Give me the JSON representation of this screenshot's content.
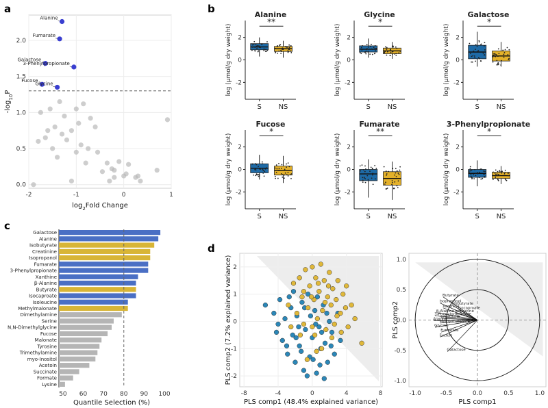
{
  "panels": {
    "a": {
      "label": "a"
    },
    "b": {
      "label": "b"
    },
    "c": {
      "label": "c"
    },
    "d": {
      "label": "d"
    }
  },
  "chart_data": [
    {
      "id": "volcano",
      "type": "scatter",
      "title": "",
      "xlabel_main": "log",
      "xlabel_sub": "2",
      "xlabel_tail": "Fold Change",
      "ylabel_main": "-log",
      "ylabel_sub": "10",
      "ylabel_tail": "P",
      "xlim": [
        -2,
        1
      ],
      "ylim": [
        -0.05,
        2.35
      ],
      "xticks": [
        "-2",
        "-1",
        "0",
        "1"
      ],
      "yticks": [
        "0.0",
        "0.5",
        "1.0",
        "1.5",
        "2.0"
      ],
      "threshold": 1.3,
      "significant": [
        {
          "name": "Alanine",
          "x": -1.3,
          "y": 2.26
        },
        {
          "name": "Fumarate",
          "x": -1.35,
          "y": 2.02
        },
        {
          "name": "Galactose",
          "x": -1.65,
          "y": 1.68
        },
        {
          "name": "3-Phenylpropionate",
          "x": -1.05,
          "y": 1.63
        },
        {
          "name": "Fucose",
          "x": -1.72,
          "y": 1.39
        },
        {
          "name": "Glycine",
          "x": -1.4,
          "y": 1.35
        }
      ],
      "nonsignificant": [
        [
          -1.75,
          1.0
        ],
        [
          -1.55,
          1.05
        ],
        [
          -1.35,
          1.15
        ],
        [
          -1.0,
          1.05
        ],
        [
          -0.85,
          1.12
        ],
        [
          -1.25,
          0.95
        ],
        [
          -1.45,
          0.8
        ],
        [
          -0.95,
          0.85
        ],
        [
          -0.7,
          0.92
        ],
        [
          -1.1,
          0.75
        ],
        [
          -1.3,
          0.7
        ],
        [
          -0.6,
          0.8
        ],
        [
          -1.6,
          0.75
        ],
        [
          -1.2,
          0.62
        ],
        [
          -0.9,
          0.55
        ],
        [
          -1.5,
          0.5
        ],
        [
          -1.0,
          0.45
        ],
        [
          -1.4,
          0.38
        ],
        [
          -0.8,
          0.3
        ],
        [
          -0.35,
          0.3
        ],
        [
          -0.1,
          0.32
        ],
        [
          0.1,
          0.28
        ],
        [
          -0.25,
          0.22
        ],
        [
          0.05,
          0.15
        ],
        [
          -0.2,
          0.1
        ],
        [
          -0.45,
          0.18
        ],
        [
          -0.3,
          0.05
        ],
        [
          0.0,
          0.12
        ],
        [
          0.3,
          0.12
        ],
        [
          0.35,
          0.05
        ],
        [
          0.7,
          0.2
        ],
        [
          0.92,
          0.9
        ],
        [
          -1.8,
          0.6
        ],
        [
          -1.65,
          0.65
        ],
        [
          -1.9,
          0.0
        ],
        [
          -1.1,
          0.05
        ],
        [
          -0.75,
          0.5
        ],
        [
          -0.55,
          0.45
        ],
        [
          -0.2,
          0.2
        ],
        [
          0.25,
          0.1
        ]
      ]
    },
    {
      "id": "boxplots",
      "type": "box",
      "ylabel": "log (μmol/g dry weight)",
      "yticks": [
        "-2",
        "0",
        "2"
      ],
      "categories": [
        "S",
        "NS"
      ],
      "panels": [
        {
          "title": "Alanine",
          "sig": "**",
          "S": {
            "q1": 0.9,
            "med": 1.15,
            "q3": 1.45,
            "min": 0.3,
            "max": 2.0
          },
          "NS": {
            "q1": 0.75,
            "med": 1.0,
            "q3": 1.2,
            "min": 0.2,
            "max": 1.7
          }
        },
        {
          "title": "Glycine",
          "sig": "*",
          "S": {
            "q1": 0.7,
            "med": 0.95,
            "q3": 1.25,
            "min": 0.2,
            "max": 1.9
          },
          "NS": {
            "q1": 0.55,
            "med": 0.8,
            "q3": 1.05,
            "min": 0.1,
            "max": 1.6
          }
        },
        {
          "title": "Galactose",
          "sig": "*",
          "S": {
            "q1": 0.1,
            "med": 0.7,
            "q3": 1.3,
            "min": -0.6,
            "max": 2.5
          },
          "NS": {
            "q1": -0.1,
            "med": 0.35,
            "q3": 0.8,
            "min": -0.6,
            "max": 1.6
          }
        },
        {
          "title": "Fucose",
          "sig": "*",
          "S": {
            "q1": -0.3,
            "med": 0.1,
            "q3": 0.5,
            "min": -0.9,
            "max": 1.3
          },
          "NS": {
            "q1": -0.5,
            "med": -0.1,
            "q3": 0.3,
            "min": -1.2,
            "max": 1.2
          }
        },
        {
          "title": "Fumarate",
          "sig": "**",
          "S": {
            "q1": -1.0,
            "med": -0.4,
            "q3": 0.0,
            "min": -2.5,
            "max": 0.9
          },
          "NS": {
            "q1": -1.4,
            "med": -0.8,
            "q3": -0.2,
            "min": -2.7,
            "max": 0.7
          }
        },
        {
          "title": "3-Phenylpropionate",
          "sig": "*",
          "S": {
            "q1": -0.7,
            "med": -0.35,
            "q3": 0.0,
            "min": -1.5,
            "max": 0.8
          },
          "NS": {
            "q1": -0.8,
            "med": -0.55,
            "q3": -0.25,
            "min": -1.3,
            "max": 0.3
          }
        }
      ]
    },
    {
      "id": "quantile",
      "type": "bar",
      "orientation": "horizontal",
      "xlabel": "Quantile Selection (%)",
      "xlim": [
        48,
        100
      ],
      "xticks": [
        "50",
        "60",
        "70",
        "80",
        "90",
        "100"
      ],
      "threshold": 80,
      "categories": [
        "Galactose",
        "Alanine",
        "Isobutyrate",
        "Creatinine",
        "Isopropanol",
        "Fumarate",
        "3-Phenylpropionate",
        "Xanthine",
        "β-Alanine",
        "Butyrate",
        "Isocaproate",
        "Isoleucine",
        "Methylmalonate",
        "Dimethylamine",
        "Serine",
        "N,N-Dimethylglycine",
        "Fucose",
        "Malonate",
        "Tyrosine",
        "Trimethylamine",
        "myo-Inositol",
        "Acetoin",
        "Succinate",
        "Formate",
        "Lysine"
      ],
      "values": [
        98,
        97,
        95,
        93,
        93,
        92,
        92,
        87,
        86,
        86,
        86,
        82,
        82,
        79,
        75,
        74,
        72,
        69,
        68,
        67,
        66,
        63,
        58,
        55,
        51
      ],
      "groups": [
        "blue",
        "blue",
        "gold",
        "gold",
        "gold",
        "blue",
        "blue",
        "blue",
        "blue",
        "gold",
        "blue",
        "blue",
        "gold",
        "gray",
        "gray",
        "gray",
        "gray",
        "gray",
        "gray",
        "gray",
        "gray",
        "gray",
        "gray",
        "gray",
        "gray"
      ],
      "colors": {
        "blue": "#4a6fc4",
        "gold": "#d8b536",
        "gray": "#b5b5b5"
      }
    },
    {
      "id": "pls_scores",
      "type": "scatter",
      "xlabel": "PLS comp1 (48.4% explained variance)",
      "ylabel": "PLS comp2 (7.2% explained variance)",
      "xlim": [
        -8.5,
        8.2
      ],
      "ylim": [
        -2.4,
        2.5
      ],
      "xticks": [
        "-8",
        "-4",
        "0",
        "4",
        "8"
      ],
      "yticks": [
        "-2",
        "-1",
        "0",
        "1",
        "2"
      ],
      "series": [
        {
          "name": "S",
          "color": "#2b87b8",
          "points": [
            [
              -5.5,
              0.6
            ],
            [
              -4.5,
              0.3
            ],
            [
              -4.2,
              -0.4
            ],
            [
              -3.8,
              0.8
            ],
            [
              -3.5,
              -0.7
            ],
            [
              -3.2,
              0.1
            ],
            [
              -2.9,
              -1.2
            ],
            [
              -2.5,
              0.5
            ],
            [
              -2.3,
              -0.5
            ],
            [
              -2.0,
              -1.5
            ],
            [
              -1.8,
              0.2
            ],
            [
              -1.5,
              -0.9
            ],
            [
              -1.2,
              0.7
            ],
            [
              -1.0,
              -1.8
            ],
            [
              -0.8,
              -0.3
            ],
            [
              -0.5,
              1.0
            ],
            [
              -0.3,
              -1.3
            ],
            [
              0.0,
              -0.6
            ],
            [
              0.3,
              0.4
            ],
            [
              0.5,
              -1.9
            ],
            [
              0.8,
              -0.2
            ],
            [
              1.0,
              -1.0
            ],
            [
              1.3,
              0.6
            ],
            [
              1.5,
              -0.8
            ],
            [
              1.8,
              -1.5
            ],
            [
              2.0,
              0.0
            ],
            [
              2.3,
              -0.4
            ],
            [
              2.6,
              -1.2
            ],
            [
              3.0,
              0.3
            ],
            [
              3.3,
              -0.7
            ],
            [
              -2.7,
              0.9
            ],
            [
              -1.6,
              -0.2
            ],
            [
              -0.6,
              -2.0
            ],
            [
              0.6,
              0.9
            ],
            [
              1.1,
              -0.4
            ],
            [
              -3.0,
              -0.9
            ],
            [
              -2.2,
              1.1
            ],
            [
              -0.2,
              0.2
            ],
            [
              0.9,
              -1.6
            ],
            [
              1.7,
              0.3
            ],
            [
              -1.3,
              -1.1
            ],
            [
              2.2,
              -0.9
            ],
            [
              0.1,
              -1.4
            ],
            [
              -4.0,
              -0.1
            ],
            [
              -0.9,
              0.5
            ],
            [
              1.4,
              -2.1
            ],
            [
              -1.9,
              -0.6
            ],
            [
              0.4,
              -0.1
            ]
          ]
        },
        {
          "name": "NS",
          "color": "#e0b83a",
          "points": [
            [
              -2.8,
              0.6
            ],
            [
              -2.2,
              1.4
            ],
            [
              -1.8,
              0.3
            ],
            [
              -1.5,
              1.6
            ],
            [
              -1.2,
              0.9
            ],
            [
              -1.0,
              -0.1
            ],
            [
              -0.8,
              1.9
            ],
            [
              -0.5,
              0.5
            ],
            [
              -0.3,
              1.3
            ],
            [
              0.0,
              2.0
            ],
            [
              0.2,
              0.8
            ],
            [
              0.4,
              1.6
            ],
            [
              0.6,
              0.1
            ],
            [
              0.8,
              1.1
            ],
            [
              1.0,
              2.1
            ],
            [
              1.2,
              0.4
            ],
            [
              1.4,
              1.5
            ],
            [
              1.6,
              -0.3
            ],
            [
              1.8,
              0.9
            ],
            [
              2.0,
              1.8
            ],
            [
              2.2,
              0.6
            ],
            [
              2.4,
              1.2
            ],
            [
              2.6,
              -0.1
            ],
            [
              2.8,
              0.8
            ],
            [
              3.0,
              1.5
            ],
            [
              3.3,
              0.3
            ],
            [
              3.6,
              1.0
            ],
            [
              3.9,
              0.5
            ],
            [
              4.2,
              -0.2
            ],
            [
              4.6,
              0.6
            ],
            [
              5.0,
              0.1
            ],
            [
              5.8,
              -0.8
            ],
            [
              -0.6,
              -1.4
            ],
            [
              0.3,
              -0.5
            ],
            [
              1.1,
              -1.0
            ],
            [
              -1.4,
              -0.5
            ],
            [
              2.3,
              -0.6
            ],
            [
              0.7,
              1.4
            ],
            [
              -0.1,
              0.9
            ],
            [
              1.5,
              0.7
            ],
            [
              3.4,
              -0.4
            ],
            [
              -2.5,
              -0.2
            ],
            [
              2.9,
              0.2
            ],
            [
              0.0,
              -0.2
            ],
            [
              1.9,
              1.3
            ],
            [
              -1.0,
              1.1
            ],
            [
              4.0,
              1.3
            ],
            [
              0.5,
              -1.1
            ]
          ]
        }
      ]
    },
    {
      "id": "pls_loadings",
      "type": "correlation-circle",
      "xlabel": "PLS comp1",
      "ylabel": "PLS comp2",
      "xlim": [
        -1.1,
        1.1
      ],
      "ylim": [
        -1.1,
        1.1
      ],
      "xticks": [
        "-1.0",
        "-0.5",
        "0.0",
        "0.5",
        "1.0"
      ],
      "yticks": [
        "-1.0",
        "-0.5",
        "0.0",
        "0.5",
        "1.0"
      ],
      "circles": [
        0.5,
        1.0
      ],
      "vectors": [
        {
          "name": "Butyrate",
          "x": -0.55,
          "y": 0.38
        },
        {
          "name": "Isopropanol",
          "x": -0.6,
          "y": 0.28
        },
        {
          "name": "Isobutyrate",
          "x": -0.4,
          "y": 0.24
        },
        {
          "name": "Xanthine",
          "x": -0.55,
          "y": 0.2
        },
        {
          "name": "Isocaproate",
          "x": -0.3,
          "y": 0.17
        },
        {
          "name": "β-Alanine",
          "x": -0.65,
          "y": 0.12
        },
        {
          "name": "Isoleucine",
          "x": -0.35,
          "y": 0.12
        },
        {
          "name": "3-Phenylpropionate",
          "x": -0.68,
          "y": 0.07
        },
        {
          "name": "Creatinine",
          "x": -0.58,
          "y": 0.03
        },
        {
          "name": "Alanine",
          "x": -0.7,
          "y": -0.01
        },
        {
          "name": "Methylmalonate",
          "x": -0.6,
          "y": -0.05
        },
        {
          "name": "Glycine",
          "x": -0.68,
          "y": -0.12
        },
        {
          "name": "Fumarate",
          "x": -0.58,
          "y": -0.2
        },
        {
          "name": "Fucose",
          "x": -0.6,
          "y": -0.28
        },
        {
          "name": "Galactose",
          "x": -0.48,
          "y": -0.52
        }
      ]
    }
  ]
}
